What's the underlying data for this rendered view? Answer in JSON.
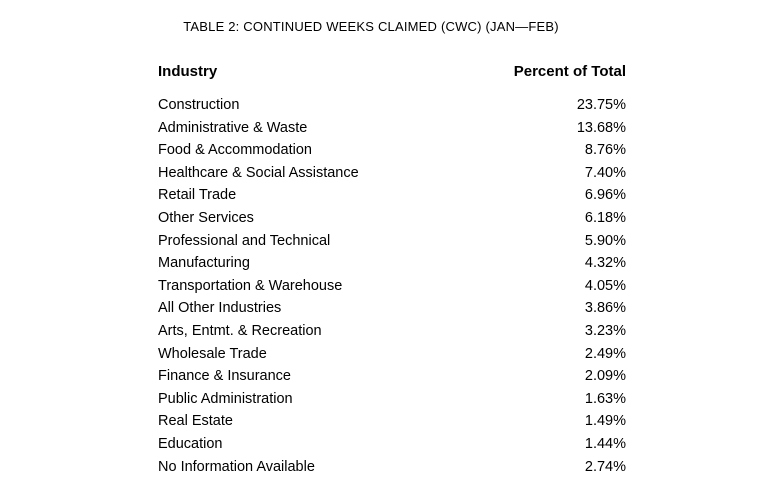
{
  "table": {
    "title": "TABLE 2: CONTINUED WEEKS CLAIMED (CWC) (JAN—FEB)",
    "columns": [
      "Industry",
      "Percent of Total"
    ],
    "rows": [
      {
        "industry": "Construction",
        "percent": "23.75%"
      },
      {
        "industry": "Administrative & Waste",
        "percent": "13.68%"
      },
      {
        "industry": "Food & Accommodation",
        "percent": "8.76%"
      },
      {
        "industry": "Healthcare & Social Assistance",
        "percent": "7.40%"
      },
      {
        "industry": "Retail Trade",
        "percent": "6.96%"
      },
      {
        "industry": "Other Services",
        "percent": "6.18%"
      },
      {
        "industry": "Professional and Technical",
        "percent": "5.90%"
      },
      {
        "industry": "Manufacturing",
        "percent": "4.32%"
      },
      {
        "industry": "Transportation & Warehouse",
        "percent": "4.05%"
      },
      {
        "industry": "All Other Industries",
        "percent": "3.86%"
      },
      {
        "industry": "Arts, Entmt. & Recreation",
        "percent": "3.23%"
      },
      {
        "industry": "Wholesale Trade",
        "percent": "2.49%"
      },
      {
        "industry": "Finance & Insurance",
        "percent": "2.09%"
      },
      {
        "industry": "Public Administration",
        "percent": "1.63%"
      },
      {
        "industry": "Real Estate",
        "percent": "1.49%"
      },
      {
        "industry": "Education",
        "percent": "1.44%"
      },
      {
        "industry": "No Information Available",
        "percent": "2.74%"
      }
    ]
  },
  "colors": {
    "background": "#ffffff",
    "text": "#000000"
  }
}
